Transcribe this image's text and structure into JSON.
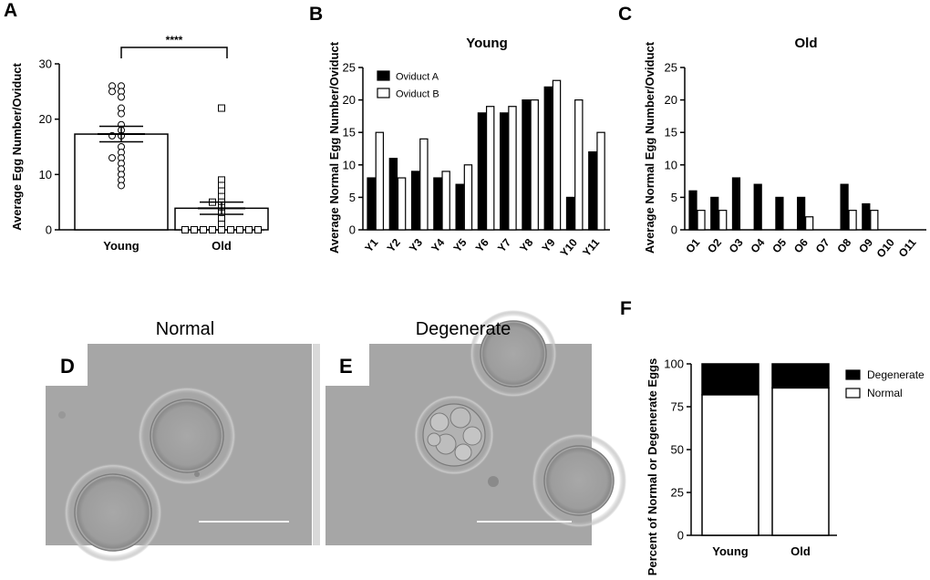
{
  "panel_letters": [
    "A",
    "B",
    "C",
    "D",
    "E",
    "F"
  ],
  "chart_data": [
    {
      "panel": "A",
      "type": "bar",
      "title": "",
      "xlabel": "",
      "ylabel": "Average Egg Number/Oviduct",
      "ylim": [
        0,
        30
      ],
      "yticks": [
        0,
        10,
        20,
        30
      ],
      "categories": [
        "Young",
        "Old"
      ],
      "values": [
        17.3,
        3.9
      ],
      "errors": [
        1.4,
        1.1
      ],
      "points": [
        [
          26,
          26,
          25,
          25,
          24,
          22,
          21,
          19,
          18,
          17,
          17,
          15,
          14,
          13,
          13,
          12,
          11,
          10,
          9,
          8
        ],
        [
          22,
          9,
          8,
          7,
          6,
          5,
          5,
          4,
          3,
          2,
          1,
          0,
          0,
          0,
          0,
          0,
          0,
          0,
          0,
          0
        ]
      ],
      "significance": "****"
    },
    {
      "panel": "B",
      "type": "bar",
      "title": "Young",
      "xlabel": "",
      "ylabel": "Average Normal Egg Number/Oviduct",
      "ylim": [
        0,
        25
      ],
      "yticks": [
        0,
        5,
        10,
        15,
        20,
        25
      ],
      "categories": [
        "Y1",
        "Y2",
        "Y3",
        "Y4",
        "Y5",
        "Y6",
        "Y7",
        "Y8",
        "Y9",
        "Y10",
        "Y11"
      ],
      "series": [
        {
          "name": "Oviduct A",
          "color": "#000000",
          "values": [
            8,
            11,
            9,
            8,
            7,
            18,
            18,
            20,
            22,
            5,
            12
          ]
        },
        {
          "name": "Oviduct B",
          "color": "#ffffff",
          "values": [
            15,
            8,
            14,
            9,
            10,
            19,
            19,
            20,
            23,
            20,
            15
          ]
        }
      ],
      "legend": "top-left"
    },
    {
      "panel": "C",
      "type": "bar",
      "title": "Old",
      "xlabel": "",
      "ylabel": "Average Normal Egg Number/Oviduct",
      "ylim": [
        0,
        25
      ],
      "yticks": [
        0,
        5,
        10,
        15,
        20,
        25
      ],
      "categories": [
        "O1",
        "O2",
        "O3",
        "O4",
        "O5",
        "O6",
        "O7",
        "O8",
        "O9",
        "O10",
        "O11"
      ],
      "series": [
        {
          "name": "Oviduct A",
          "color": "#000000",
          "values": [
            6,
            5,
            8,
            7,
            5,
            5,
            0,
            7,
            4,
            0,
            0
          ]
        },
        {
          "name": "Oviduct B",
          "color": "#ffffff",
          "values": [
            3,
            3,
            0,
            0,
            0,
            2,
            0,
            3,
            3,
            0,
            0
          ]
        }
      ]
    },
    {
      "panel": "F",
      "type": "bar",
      "stacked": true,
      "title": "",
      "xlabel": "",
      "ylabel": "Percent of Normal or Degenerate Eggs",
      "ylim": [
        0,
        100
      ],
      "yticks": [
        0,
        25,
        50,
        75,
        100
      ],
      "categories": [
        "Young",
        "Old"
      ],
      "series": [
        {
          "name": "Normal",
          "color": "#ffffff",
          "values": [
            82,
            86
          ]
        },
        {
          "name": "Degenerate",
          "color": "#000000",
          "values": [
            18,
            14
          ]
        }
      ],
      "legend": "right"
    }
  ],
  "micrographs": [
    {
      "panel": "D",
      "title": "Normal"
    },
    {
      "panel": "E",
      "title": "Degenerate"
    }
  ]
}
